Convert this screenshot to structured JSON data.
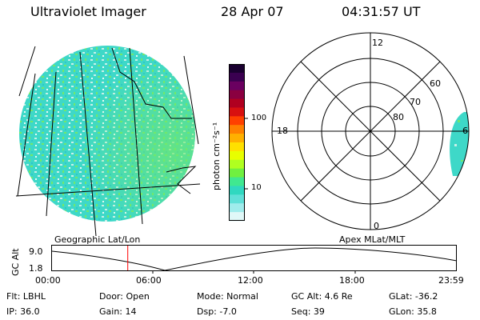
{
  "header": {
    "title": "Ultraviolet Imager",
    "date": "28 Apr 07",
    "time": "04:31:57 UT"
  },
  "colorbar": {
    "unit_label": "photon cm⁻²s⁻¹",
    "ticks": [
      "100",
      "10"
    ],
    "colors": [
      "#1a0030",
      "#3a0050",
      "#6a0060",
      "#8a0040",
      "#b00020",
      "#d81010",
      "#ff4000",
      "#ff8000",
      "#ffb000",
      "#ffe000",
      "#e8ff00",
      "#b0ff20",
      "#70f040",
      "#40e890",
      "#30d8c0",
      "#60e0d8",
      "#a0ecec",
      "#e0f8f8"
    ]
  },
  "left_map": {
    "caption": "Geographic Lat/Lon",
    "aurora_colors": [
      "#3ed8c8",
      "#72e86a",
      "#c8f0e8",
      "#2cc8c8"
    ]
  },
  "polar_plot": {
    "caption": "Apex MLat/MLT",
    "lat_labels": [
      "80",
      "70",
      "60"
    ],
    "mlt_labels": {
      "top": "12",
      "bottom": "0",
      "left": "18",
      "right": "6"
    }
  },
  "timeline": {
    "ylabel": "GC Alt",
    "y_ticks": [
      "9.0",
      "1.8"
    ],
    "x_ticks": [
      "00:00",
      "06:00",
      "12:00",
      "18:00",
      "23:59"
    ],
    "marker_time_hours": 4.53,
    "marker_color": "#ff0000"
  },
  "info": {
    "flt": "Flt: LBHL",
    "door": "Door: Open",
    "mode": "Mode: Normal",
    "gc_alt": "GC Alt: 4.6 Re",
    "glat": "GLat: -36.2",
    "ip": "IP: 36.0",
    "gain": "Gain: 14",
    "dsp": "Dsp:   -7.0",
    "seq": "Seq: 39",
    "glon": "GLon:  35.8"
  }
}
